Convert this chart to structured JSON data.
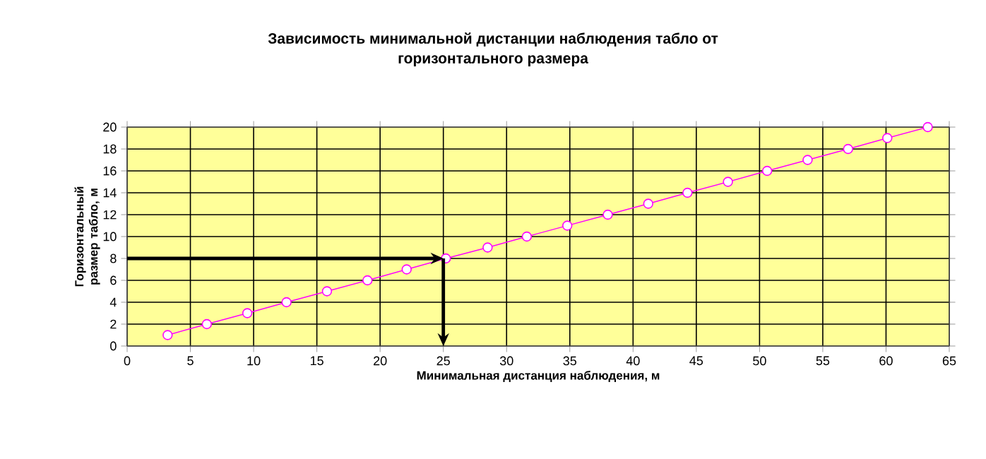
{
  "chart_data": {
    "type": "line",
    "title": "Зависимость минимальной дистанции наблюдения табло от горизонтального размера",
    "xlabel": "Минимальная дистанция наблюдения, м",
    "ylabel": "Горизонтальный размер табло, м",
    "x": [
      3.2,
      6.3,
      9.5,
      12.6,
      15.8,
      19.0,
      22.1,
      25.2,
      28.5,
      31.6,
      34.8,
      38.0,
      41.2,
      44.3,
      47.5,
      50.6,
      53.8,
      57.0,
      60.1,
      63.3
    ],
    "series": [
      {
        "color": "#ff00ff",
        "values": [
          1,
          2,
          3,
          4,
          5,
          6,
          7,
          8,
          9,
          10,
          11,
          12,
          13,
          14,
          15,
          16,
          17,
          18,
          19,
          20
        ]
      }
    ],
    "xlim": [
      0,
      65
    ],
    "xticks": [
      0,
      5,
      10,
      15,
      20,
      25,
      30,
      35,
      40,
      45,
      50,
      55,
      60,
      65
    ],
    "ylim": [
      0,
      20
    ],
    "yticks": [
      0,
      2,
      4,
      6,
      8,
      10,
      12,
      14,
      16,
      18,
      20
    ],
    "grid": true,
    "marker": "circle",
    "line_style": "solid",
    "ref_lines": [
      {
        "axis": "y",
        "value": 8,
        "color": "#000000"
      },
      {
        "axis": "x",
        "value": 25,
        "color": "#000000"
      }
    ]
  }
}
